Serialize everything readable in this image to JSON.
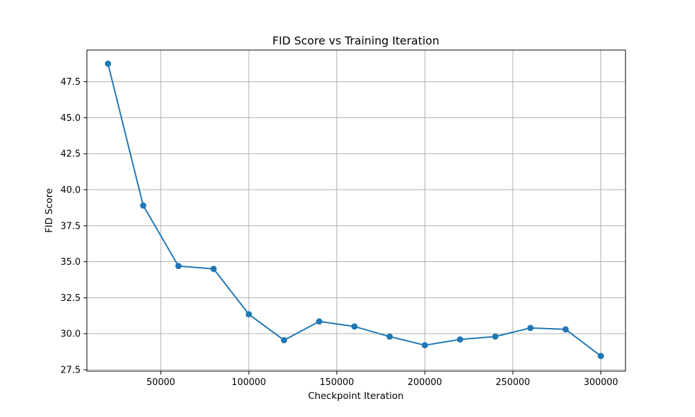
{
  "chart_data": {
    "type": "line",
    "title": "FID Score vs Training Iteration",
    "xlabel": "Checkpoint Iteration",
    "ylabel": "FID Score",
    "x": [
      20000,
      40000,
      60000,
      80000,
      100000,
      120000,
      140000,
      160000,
      180000,
      200000,
      220000,
      240000,
      260000,
      280000,
      300000
    ],
    "series": [
      {
        "values": [
          48.75,
          38.9,
          34.7,
          34.5,
          31.35,
          29.55,
          30.85,
          30.5,
          29.8,
          29.2,
          29.6,
          29.8,
          30.4,
          30.3,
          28.45
        ]
      }
    ],
    "xlim": [
      8000,
      314000
    ],
    "ylim": [
      27.4,
      49.7
    ],
    "xticks": [
      50000,
      100000,
      150000,
      200000,
      250000,
      300000
    ],
    "xtick_labels": [
      "50000",
      "100000",
      "150000",
      "200000",
      "250000",
      "300000"
    ],
    "yticks": [
      27.5,
      30.0,
      32.5,
      35.0,
      37.5,
      40.0,
      42.5,
      45.0,
      47.5
    ],
    "ytick_labels": [
      "27.5",
      "30.0",
      "32.5",
      "35.0",
      "37.5",
      "40.0",
      "42.5",
      "45.0",
      "47.5"
    ],
    "grid": true,
    "markers": true,
    "line_color": "#1f77b4",
    "grid_color": "#b0b0b0"
  }
}
